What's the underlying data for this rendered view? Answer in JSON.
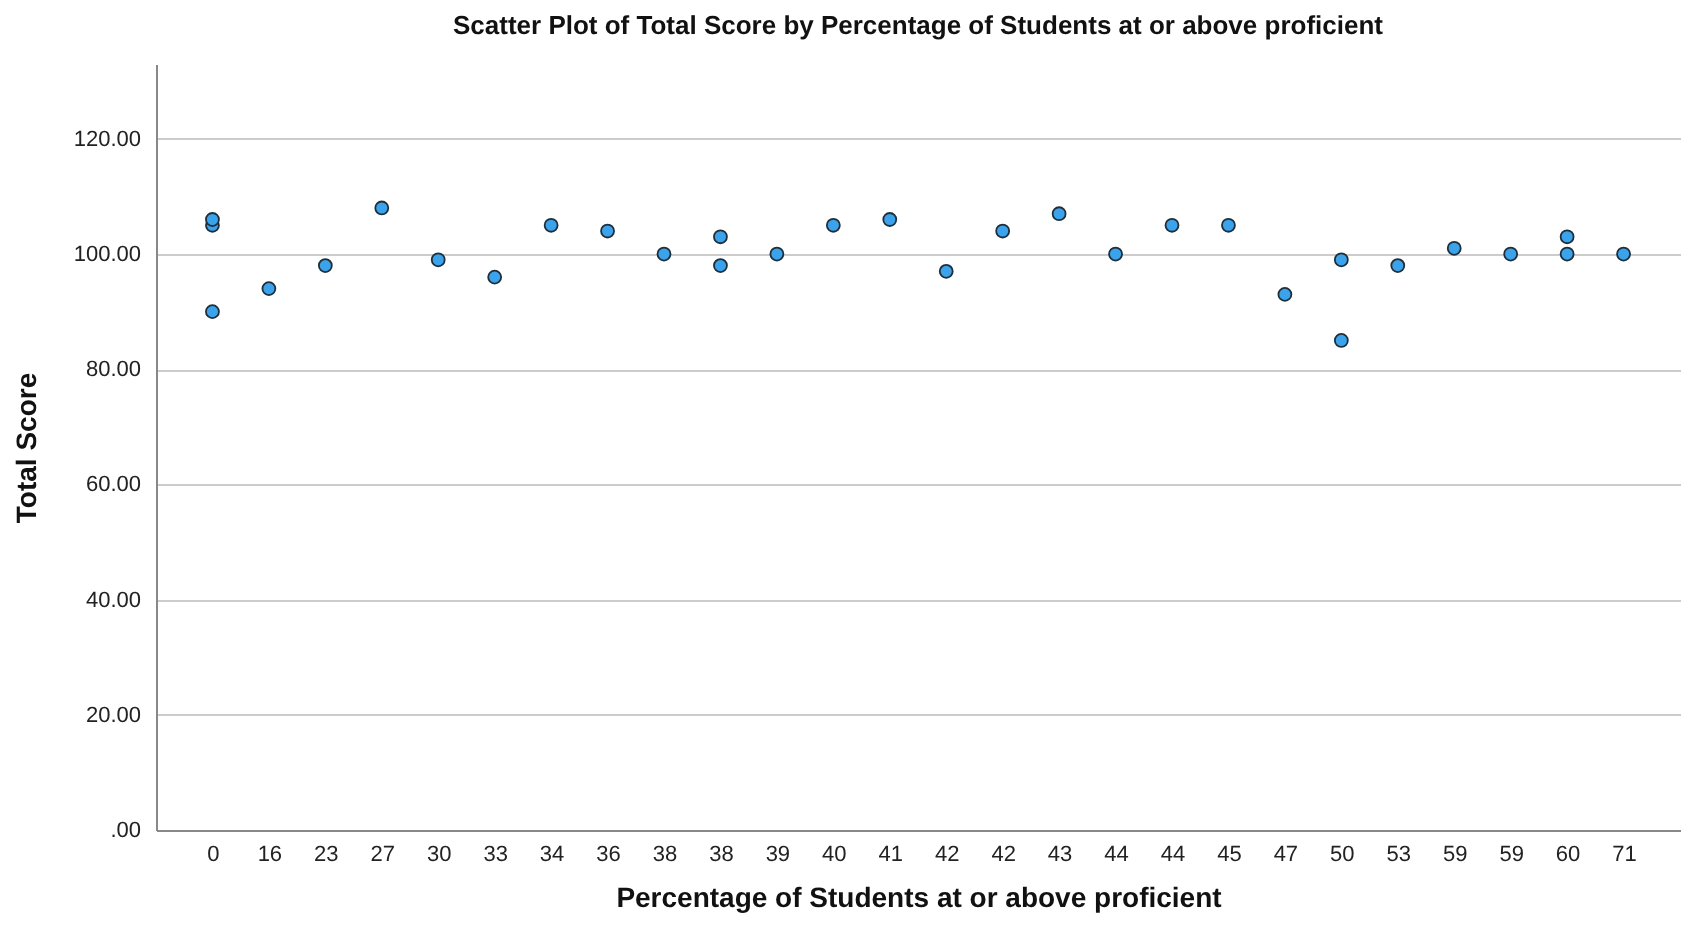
{
  "chart_data": {
    "type": "scatter",
    "title": "Scatter Plot of Total Score by Percentage of Students at or above proficient",
    "xlabel": "Percentage of Students at or above proficient",
    "ylabel": "Total Score",
    "categories": [
      "0",
      "16",
      "23",
      "27",
      "30",
      "33",
      "34",
      "36",
      "38",
      "38",
      "39",
      "40",
      "41",
      "42",
      "42",
      "43",
      "44",
      "44",
      "45",
      "47",
      "50",
      "53",
      "59",
      "59",
      "60",
      "71"
    ],
    "series": [
      {
        "color": "#3ba3ec",
        "values": [
          105,
          94,
          98,
          108,
          99,
          96,
          105,
          104,
          100,
          103,
          100,
          105,
          106,
          97,
          104,
          107,
          100,
          105,
          105,
          93,
          99,
          98,
          101,
          100,
          103,
          100
        ]
      },
      {
        "color": "#3ba3ec",
        "values": [
          106,
          null,
          null,
          null,
          null,
          null,
          null,
          null,
          null,
          98,
          null,
          null,
          null,
          null,
          null,
          null,
          null,
          null,
          null,
          null,
          85,
          null,
          null,
          null,
          100,
          null
        ]
      },
      {
        "color": "#3ba3ec",
        "values": [
          90,
          null,
          null,
          null,
          null,
          null,
          null,
          null,
          null,
          null,
          null,
          null,
          null,
          null,
          null,
          null,
          null,
          null,
          null,
          null,
          null,
          null,
          null,
          null,
          null,
          null
        ]
      }
    ],
    "ylim": [
      0,
      133
    ],
    "yticks": [
      {
        "value": 0,
        "label": ".00"
      },
      {
        "value": 20,
        "label": "20.00"
      },
      {
        "value": 40,
        "label": "40.00"
      },
      {
        "value": 60,
        "label": "60.00"
      },
      {
        "value": 80,
        "label": "80.00"
      },
      {
        "value": 100,
        "label": "100.00"
      },
      {
        "value": 120,
        "label": "120.00"
      }
    ],
    "grid": "y",
    "marker": "circle"
  }
}
